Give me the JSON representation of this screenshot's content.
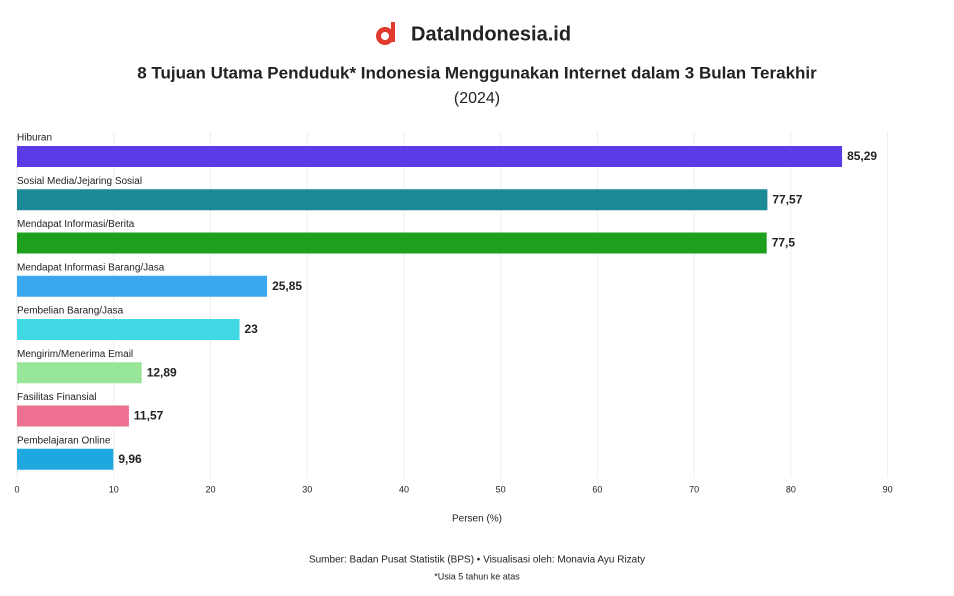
{
  "brand": "DataIndonesia.id",
  "chart_data": {
    "type": "hbar",
    "title": "8 Tujuan Utama Penduduk* Indonesia Menggunakan Internet dalam 3 Bulan Terakhir",
    "subtitle": "(2024)",
    "categories": [
      "Hiburan",
      "Sosial Media/Jejaring Sosial",
      "Mendapat Informasi/Berita",
      "Mendapat Informasi Barang/Jasa",
      "Pembelian Barang/Jasa",
      "Mengirim/Menerima Email",
      "Fasilitas Finansial",
      "Pembelajaran Online"
    ],
    "values": [
      85.29,
      77.57,
      77.5,
      25.85,
      23,
      12.89,
      11.57,
      9.96
    ],
    "value_labels": [
      "85,29",
      "77,57",
      "77,5",
      "25,85",
      "23",
      "12,89",
      "11,57",
      "9,96"
    ],
    "colors": [
      "#5b3be6",
      "#1a8a96",
      "#1ea01e",
      "#3aa8ee",
      "#40d8e4",
      "#98e69a",
      "#ee7090",
      "#1fa8e0"
    ],
    "xlim": [
      0,
      95
    ],
    "xticks": [
      0,
      10,
      20,
      30,
      40,
      50,
      60,
      70,
      80,
      90
    ],
    "xlabel": "Persen (%)",
    "source": "Sumber: Badan Pusat Statistik (BPS) • Visualisasi oleh: Monavia Ayu Rizaty",
    "note": "*Usia 5 tahun ke atas",
    "grid": true
  }
}
